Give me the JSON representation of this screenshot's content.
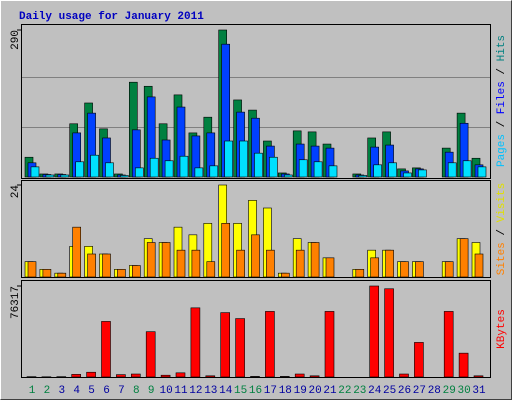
{
  "chart_data": {
    "type": "bar",
    "title": "Daily usage for January 2011",
    "categories": [
      "1",
      "2",
      "3",
      "4",
      "5",
      "6",
      "7",
      "8",
      "9",
      "10",
      "11",
      "12",
      "13",
      "14",
      "15",
      "16",
      "17",
      "18",
      "19",
      "20",
      "21",
      "22",
      "23",
      "24",
      "25",
      "26",
      "27",
      "28",
      "29",
      "30",
      "31"
    ],
    "category_colors": [
      "#008040",
      "#008040",
      "#0000a0",
      "#0000a0",
      "#0000a0",
      "#0000a0",
      "#0000a0",
      "#008040",
      "#008040",
      "#0000a0",
      "#0000a0",
      "#0000a0",
      "#0000a0",
      "#0000a0",
      "#008040",
      "#008040",
      "#0000a0",
      "#0000a0",
      "#0000a0",
      "#0000a0",
      "#0000a0",
      "#008040",
      "#008040",
      "#0000a0",
      "#0000a0",
      "#0000a0",
      "#0000a0",
      "#0000a0",
      "#008040",
      "#008040",
      "#0000a0"
    ],
    "legend_separator": " / ",
    "panels": [
      {
        "ylim": [
          0,
          290
        ],
        "yticks": [
          290
        ],
        "series": [
          {
            "name": "Hits",
            "color": "#008040",
            "label_color": "#008080",
            "values": [
              39,
              6,
              6,
              105,
              146,
              95,
              6,
              187,
              179,
              105,
              162,
              87,
              118,
              290,
              152,
              132,
              71,
              8,
              91,
              89,
              65,
              0,
              6,
              77,
              89,
              16,
              18,
              0,
              57,
              126,
              37
            ]
          },
          {
            "name": "Files",
            "color": "#0040ff",
            "label_color": "#0000ff",
            "values": [
              28,
              5,
              5,
              87,
              126,
              77,
              4,
              93,
              158,
              73,
              138,
              81,
              87,
              262,
              128,
              116,
              61,
              6,
              65,
              61,
              57,
              0,
              4,
              59,
              63,
              12,
              16,
              0,
              49,
              106,
              24
            ]
          },
          {
            "name": "Pages",
            "color": "#00e0ff",
            "label_color": "#00c0ff",
            "values": [
              20,
              4,
              4,
              30,
              43,
              28,
              3,
              18,
              37,
              32,
              41,
              18,
              22,
              71,
              71,
              47,
              39,
              4,
              34,
              30,
              22,
              0,
              3,
              24,
              28,
              8,
              14,
              0,
              28,
              32,
              20
            ]
          }
        ]
      },
      {
        "ylim": [
          0,
          24
        ],
        "yticks": [
          24
        ],
        "series": [
          {
            "name": "Visits",
            "color": "#ffff00",
            "label_color": "#e0e000",
            "values": [
              4,
              2,
              1,
              8,
              8,
              6,
              2,
              3,
              10,
              9,
              13,
              11,
              14,
              24,
              14,
              20,
              18,
              1,
              10,
              9,
              5,
              0,
              2,
              7,
              7,
              4,
              4,
              0,
              4,
              10,
              9
            ]
          },
          {
            "name": "Sites",
            "color": "#ff8000",
            "label_color": "#ff8000",
            "values": [
              4,
              2,
              1,
              13,
              6,
              6,
              2,
              3,
              9,
              9,
              7,
              7,
              4,
              14,
              7,
              11,
              7,
              1,
              7,
              9,
              5,
              0,
              2,
              5,
              7,
              4,
              4,
              0,
              4,
              10,
              6
            ]
          }
        ]
      },
      {
        "ylim": [
          0,
          76317
        ],
        "yticks": [
          76317
        ],
        "series": [
          {
            "name": "KBytes",
            "color": "#ff0000",
            "label_color": "#ff0000",
            "values": [
              300,
              200,
              300,
              2200,
              4000,
              46600,
              2000,
              2500,
              38000,
              1500,
              3500,
              58000,
              1000,
              54000,
              49000,
              500,
              55000,
              500,
              2500,
              1000,
              55000,
              0,
              0,
              76317,
              74000,
              2500,
              29000,
              0,
              55000,
              20000,
              1000
            ]
          }
        ]
      }
    ]
  }
}
